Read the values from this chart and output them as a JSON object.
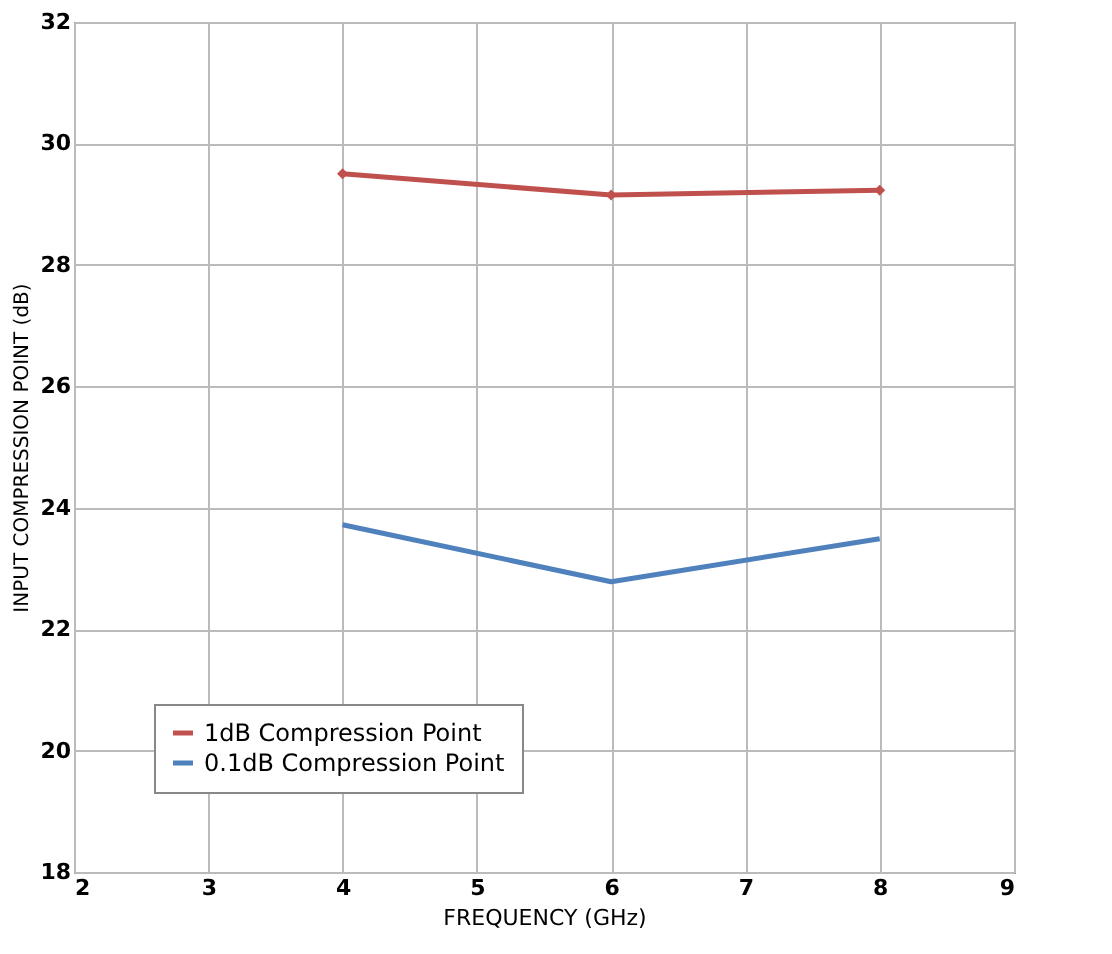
{
  "chart_data": {
    "type": "line",
    "xlabel": "FREQUENCY (GHz)",
    "ylabel": "INPUT COMPRESSION POINT (dB)",
    "xlim": [
      2,
      9
    ],
    "xticks": [
      2,
      3,
      4,
      5,
      6,
      7,
      8,
      9
    ],
    "ylim": [
      18,
      32
    ],
    "yticks": [
      18,
      20,
      22,
      24,
      26,
      28,
      30,
      32
    ],
    "grid": true,
    "legend": "bottom left",
    "x": [
      4,
      6,
      8
    ],
    "series": [
      {
        "name": "1dB Compression Point",
        "color": "#c0504d",
        "values": [
          29.5,
          29.15,
          29.23
        ],
        "marker": "diamond"
      },
      {
        "name": "0.1dB Compression Point",
        "color": "#4f81bd",
        "values": [
          23.72,
          22.78,
          23.49
        ],
        "marker": "none"
      }
    ]
  }
}
